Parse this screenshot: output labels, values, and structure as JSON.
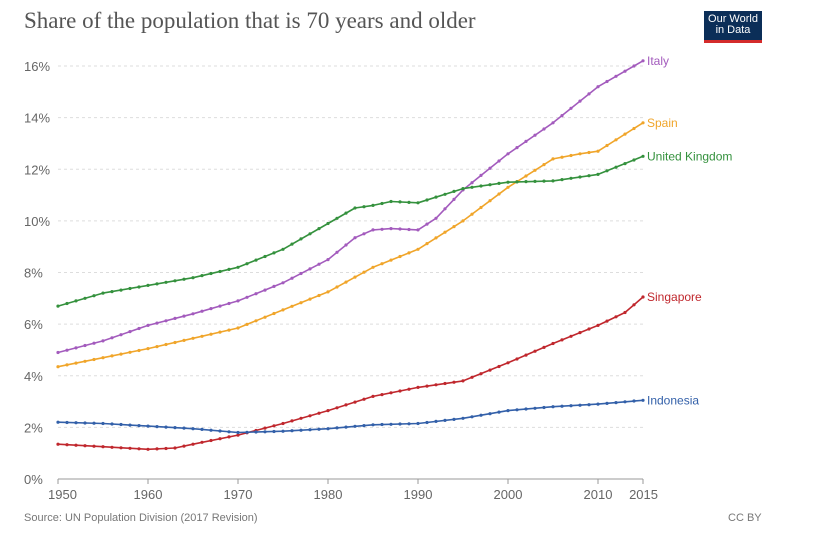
{
  "header": {
    "title": "Share of the population that is 70 years and older",
    "logo_line1": "Our World",
    "logo_line2": "in Data"
  },
  "footer": {
    "source": "Source: UN Population Division (2017 Revision)",
    "license": "CC BY"
  },
  "colors": {
    "Italy": "#a35bbd",
    "Spain": "#f0a52a",
    "United Kingdom": "#34913d",
    "Singapore": "#c0272d",
    "Indonesia": "#3360a9",
    "grid": "#dddddd",
    "logo_bg": "#0b2e58",
    "logo_accent": "#d42b2b"
  },
  "chart_data": {
    "type": "line",
    "title": "Share of the population that is 70 years and older",
    "xlabel": "",
    "ylabel": "",
    "xlim": [
      1950,
      2015
    ],
    "ylim": [
      0,
      16
    ],
    "x_ticks": [
      1950,
      1960,
      1970,
      1980,
      1990,
      2000,
      2010,
      2015
    ],
    "y_ticks": [
      0,
      2,
      4,
      6,
      8,
      10,
      12,
      14,
      16
    ],
    "y_tick_labels": [
      "0%",
      "2%",
      "4%",
      "6%",
      "8%",
      "10%",
      "12%",
      "14%",
      "16%"
    ],
    "grid": true,
    "legend": "inline-right",
    "series": [
      {
        "name": "Italy",
        "color": "#a35bbd",
        "points": [
          [
            1950,
            4.9
          ],
          [
            1955,
            5.35
          ],
          [
            1960,
            5.95
          ],
          [
            1965,
            6.4
          ],
          [
            1970,
            6.9
          ],
          [
            1975,
            7.6
          ],
          [
            1980,
            8.5
          ],
          [
            1983,
            9.35
          ],
          [
            1985,
            9.65
          ],
          [
            1987,
            9.7
          ],
          [
            1990,
            9.65
          ],
          [
            1992,
            10.1
          ],
          [
            1995,
            11.2
          ],
          [
            2000,
            12.6
          ],
          [
            2005,
            13.8
          ],
          [
            2010,
            15.2
          ],
          [
            2015,
            16.2
          ]
        ]
      },
      {
        "name": "Spain",
        "color": "#f0a52a",
        "points": [
          [
            1950,
            4.35
          ],
          [
            1955,
            4.7
          ],
          [
            1960,
            5.05
          ],
          [
            1965,
            5.45
          ],
          [
            1970,
            5.85
          ],
          [
            1975,
            6.55
          ],
          [
            1980,
            7.25
          ],
          [
            1985,
            8.2
          ],
          [
            1990,
            8.9
          ],
          [
            1995,
            10.0
          ],
          [
            2000,
            11.3
          ],
          [
            2005,
            12.4
          ],
          [
            2008,
            12.6
          ],
          [
            2010,
            12.7
          ],
          [
            2015,
            13.8
          ]
        ]
      },
      {
        "name": "United Kingdom",
        "color": "#34913d",
        "points": [
          [
            1950,
            6.7
          ],
          [
            1955,
            7.2
          ],
          [
            1960,
            7.5
          ],
          [
            1965,
            7.8
          ],
          [
            1970,
            8.2
          ],
          [
            1975,
            8.9
          ],
          [
            1980,
            9.9
          ],
          [
            1983,
            10.5
          ],
          [
            1985,
            10.6
          ],
          [
            1987,
            10.75
          ],
          [
            1990,
            10.7
          ],
          [
            1995,
            11.25
          ],
          [
            2000,
            11.5
          ],
          [
            2005,
            11.55
          ],
          [
            2010,
            11.8
          ],
          [
            2015,
            12.5
          ]
        ]
      },
      {
        "name": "Singapore",
        "color": "#c0272d",
        "points": [
          [
            1950,
            1.35
          ],
          [
            1955,
            1.25
          ],
          [
            1960,
            1.15
          ],
          [
            1963,
            1.2
          ],
          [
            1965,
            1.35
          ],
          [
            1970,
            1.7
          ],
          [
            1975,
            2.15
          ],
          [
            1980,
            2.65
          ],
          [
            1985,
            3.2
          ],
          [
            1990,
            3.55
          ],
          [
            1995,
            3.8
          ],
          [
            2000,
            4.5
          ],
          [
            2005,
            5.25
          ],
          [
            2010,
            5.95
          ],
          [
            2013,
            6.45
          ],
          [
            2015,
            7.05
          ]
        ]
      },
      {
        "name": "Indonesia",
        "color": "#3360a9",
        "points": [
          [
            1950,
            2.2
          ],
          [
            1955,
            2.15
          ],
          [
            1960,
            2.05
          ],
          [
            1965,
            1.95
          ],
          [
            1970,
            1.8
          ],
          [
            1975,
            1.85
          ],
          [
            1980,
            1.95
          ],
          [
            1985,
            2.1
          ],
          [
            1990,
            2.15
          ],
          [
            1995,
            2.35
          ],
          [
            2000,
            2.65
          ],
          [
            2005,
            2.8
          ],
          [
            2010,
            2.9
          ],
          [
            2015,
            3.05
          ]
        ]
      }
    ]
  }
}
